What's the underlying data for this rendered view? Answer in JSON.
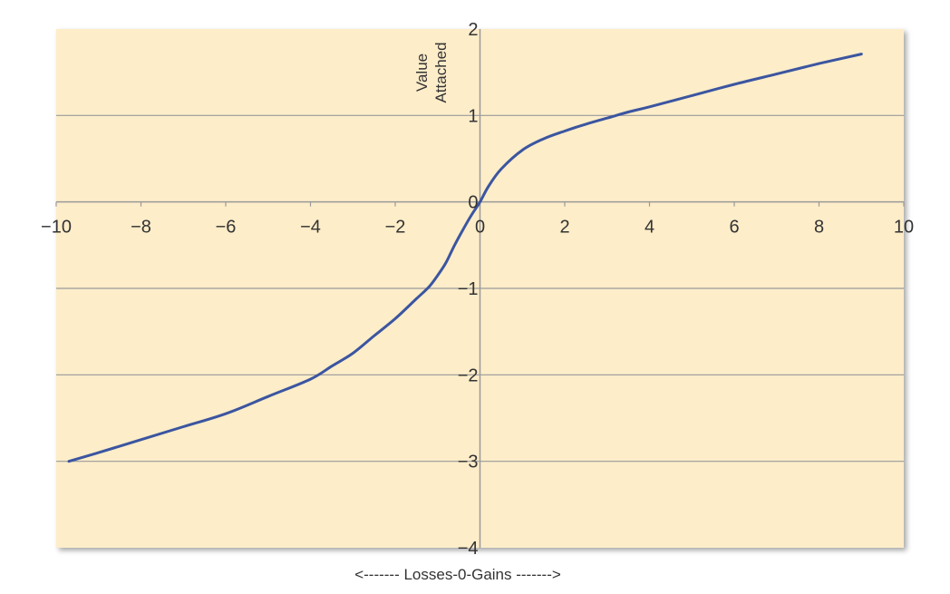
{
  "chart_data": {
    "type": "line",
    "title": "",
    "ylabel": [
      "Value",
      "Attached"
    ],
    "xlabel": "<------- Losses-0-Gains ------->",
    "xlim": [
      -10,
      10
    ],
    "ylim": [
      -4,
      2
    ],
    "x_ticks": [
      "−10",
      "−8",
      "−6",
      "−4",
      "−2",
      "0",
      "2",
      "4",
      "6",
      "8",
      "10"
    ],
    "x_tick_values": [
      -10,
      -8,
      -6,
      -4,
      -2,
      0,
      2,
      4,
      6,
      8,
      10
    ],
    "y_ticks": [
      "2",
      "1",
      "0",
      "−1",
      "−2",
      "−3",
      "−4"
    ],
    "y_tick_values": [
      2,
      1,
      0,
      -1,
      -2,
      -3,
      -4
    ],
    "grid": "horizontal",
    "legend": "none",
    "colors": {
      "plot_bg": "#fdedc9",
      "line": "#3b55a0",
      "grid": "#9a9a9a",
      "axis": "#9a9a9a",
      "text": "#333333"
    },
    "series": [
      {
        "x": [
          -9.7,
          -9,
          -8,
          -7,
          -6,
          -5,
          -4,
          -3.5,
          -3,
          -2.5,
          -2,
          -1.5,
          -1.2,
          -1,
          -0.8,
          -0.6,
          -0.4,
          -0.2,
          0,
          0.2,
          0.5,
          1,
          1.5,
          2,
          2.5,
          3,
          3.5,
          4,
          5,
          6,
          7,
          8,
          9
        ],
        "y": [
          -3.0,
          -2.9,
          -2.75,
          -2.6,
          -2.45,
          -2.25,
          -2.05,
          -1.9,
          -1.75,
          -1.55,
          -1.35,
          -1.12,
          -0.98,
          -0.85,
          -0.7,
          -0.5,
          -0.32,
          -0.15,
          0.0,
          0.18,
          0.38,
          0.6,
          0.73,
          0.82,
          0.9,
          0.97,
          1.04,
          1.1,
          1.23,
          1.36,
          1.48,
          1.6,
          1.71
        ]
      }
    ]
  }
}
